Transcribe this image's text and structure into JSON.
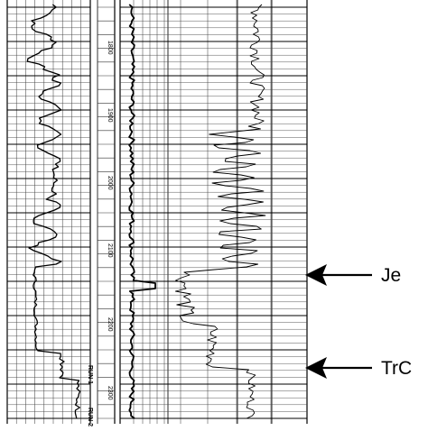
{
  "depth_labels": [
    "1800",
    "1900",
    "2000",
    "2100",
    "2200",
    "2300"
  ],
  "run_labels": [
    "RUN 1",
    "RUN 2"
  ],
  "markers": [
    {
      "label": "Je"
    },
    {
      "label": "TrC"
    }
  ]
}
